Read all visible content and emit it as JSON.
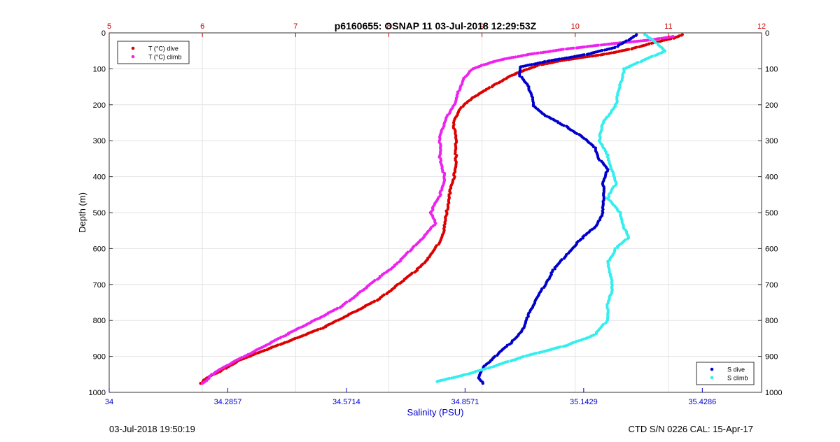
{
  "chart_data": {
    "type": "scatter",
    "title": "p6160655: OSNAP 11 03-Jul-2018 12:29:53Z",
    "ylabel": "Depth (m)",
    "xlabel_bottom": "Salinity (PSU)",
    "ylim": [
      0,
      1000
    ],
    "y_reversed": true,
    "x_top": {
      "lim": [
        5,
        12
      ],
      "ticks": [
        "5",
        "6",
        "7",
        "8",
        "9",
        "10",
        "11",
        "12"
      ],
      "color": "#cc0000"
    },
    "x_bottom": {
      "lim": [
        34,
        35.5714
      ],
      "ticks": [
        "34",
        "34.2857",
        "34.5714",
        "34.8571",
        "35.1429",
        "35.4286"
      ],
      "tick_values": [
        34,
        34.2857,
        34.5714,
        34.8571,
        35.1429,
        35.4286
      ],
      "color": "#0000cc"
    },
    "y_ticks": [
      "0",
      "100",
      "200",
      "300",
      "400",
      "500",
      "600",
      "700",
      "800",
      "900",
      "1000"
    ],
    "grid": true,
    "legend_top": {
      "placement": "top-left",
      "entries": [
        "T (°C) dive",
        "T (°C) climb"
      ]
    },
    "legend_bottom": {
      "placement": "bottom-right",
      "entries": [
        "S dive",
        "S climb"
      ]
    },
    "series": [
      {
        "name": "T (°C) dive",
        "axis": "top",
        "color": "#dd0000",
        "points": [
          [
            11.15,
            5
          ],
          [
            11.05,
            15
          ],
          [
            10.8,
            30
          ],
          [
            10.6,
            45
          ],
          [
            10.3,
            60
          ],
          [
            9.9,
            75
          ],
          [
            9.6,
            90
          ],
          [
            9.5,
            100
          ],
          [
            9.3,
            120
          ],
          [
            9.1,
            150
          ],
          [
            8.9,
            180
          ],
          [
            8.8,
            200
          ],
          [
            8.75,
            220
          ],
          [
            8.7,
            240
          ],
          [
            8.7,
            260
          ],
          [
            8.72,
            300
          ],
          [
            8.72,
            350
          ],
          [
            8.7,
            400
          ],
          [
            8.65,
            450
          ],
          [
            8.62,
            500
          ],
          [
            8.6,
            540
          ],
          [
            8.55,
            580
          ],
          [
            8.45,
            620
          ],
          [
            8.3,
            660
          ],
          [
            8.1,
            700
          ],
          [
            7.9,
            740
          ],
          [
            7.6,
            780
          ],
          [
            7.3,
            820
          ],
          [
            7.0,
            850
          ],
          [
            6.7,
            880
          ],
          [
            6.4,
            910
          ],
          [
            6.2,
            940
          ],
          [
            6.05,
            960
          ],
          [
            5.98,
            975
          ]
        ]
      },
      {
        "name": "T (°C) climb",
        "axis": "top",
        "color": "#ee22ee",
        "points": [
          [
            11.05,
            10
          ],
          [
            10.8,
            20
          ],
          [
            10.4,
            30
          ],
          [
            9.9,
            45
          ],
          [
            9.5,
            60
          ],
          [
            9.2,
            75
          ],
          [
            9.0,
            90
          ],
          [
            8.9,
            100
          ],
          [
            8.8,
            130
          ],
          [
            8.75,
            160
          ],
          [
            8.72,
            190
          ],
          [
            8.65,
            220
          ],
          [
            8.6,
            250
          ],
          [
            8.55,
            280
          ],
          [
            8.55,
            300
          ],
          [
            8.55,
            350
          ],
          [
            8.6,
            400
          ],
          [
            8.55,
            450
          ],
          [
            8.45,
            500
          ],
          [
            8.5,
            530
          ],
          [
            8.4,
            560
          ],
          [
            8.25,
            600
          ],
          [
            8.1,
            640
          ],
          [
            7.9,
            680
          ],
          [
            7.7,
            720
          ],
          [
            7.5,
            760
          ],
          [
            7.2,
            800
          ],
          [
            6.9,
            840
          ],
          [
            6.6,
            880
          ],
          [
            6.3,
            920
          ],
          [
            6.1,
            950
          ],
          [
            6.05,
            965
          ],
          [
            6.0,
            975
          ]
        ]
      },
      {
        "name": "S dive",
        "axis": "bottom",
        "color": "#0000cc",
        "points": [
          [
            35.27,
            5
          ],
          [
            35.25,
            20
          ],
          [
            35.22,
            40
          ],
          [
            35.15,
            60
          ],
          [
            35.05,
            80
          ],
          [
            34.99,
            95
          ],
          [
            34.99,
            120
          ],
          [
            35.01,
            150
          ],
          [
            35.02,
            180
          ],
          [
            35.02,
            200
          ],
          [
            35.05,
            230
          ],
          [
            35.1,
            260
          ],
          [
            35.14,
            290
          ],
          [
            35.17,
            320
          ],
          [
            35.18,
            350
          ],
          [
            35.2,
            380
          ],
          [
            35.19,
            420
          ],
          [
            35.19,
            460
          ],
          [
            35.19,
            500
          ],
          [
            35.17,
            540
          ],
          [
            35.13,
            580
          ],
          [
            35.1,
            620
          ],
          [
            35.07,
            660
          ],
          [
            35.05,
            700
          ],
          [
            35.03,
            740
          ],
          [
            35.01,
            780
          ],
          [
            35.0,
            820
          ],
          [
            34.97,
            860
          ],
          [
            34.93,
            900
          ],
          [
            34.9,
            930
          ],
          [
            34.89,
            960
          ],
          [
            34.9,
            975
          ]
        ]
      },
      {
        "name": "S climb",
        "axis": "bottom",
        "color": "#33eeee",
        "points": [
          [
            35.29,
            5
          ],
          [
            35.32,
            30
          ],
          [
            35.34,
            50
          ],
          [
            35.28,
            80
          ],
          [
            35.24,
            100
          ],
          [
            35.23,
            150
          ],
          [
            35.22,
            200
          ],
          [
            35.19,
            250
          ],
          [
            35.18,
            300
          ],
          [
            35.2,
            340
          ],
          [
            35.21,
            380
          ],
          [
            35.22,
            420
          ],
          [
            35.2,
            460
          ],
          [
            35.23,
            500
          ],
          [
            35.24,
            540
          ],
          [
            35.25,
            570
          ],
          [
            35.22,
            600
          ],
          [
            35.2,
            640
          ],
          [
            35.21,
            680
          ],
          [
            35.21,
            720
          ],
          [
            35.2,
            760
          ],
          [
            35.2,
            800
          ],
          [
            35.17,
            840
          ],
          [
            35.1,
            870
          ],
          [
            35.0,
            900
          ],
          [
            34.92,
            930
          ],
          [
            34.86,
            950
          ],
          [
            34.79,
            970
          ]
        ]
      }
    ]
  },
  "footer": {
    "left": "03-Jul-2018 19:50:19",
    "right": "CTD S/N 0226  CAL: 15-Apr-17"
  }
}
